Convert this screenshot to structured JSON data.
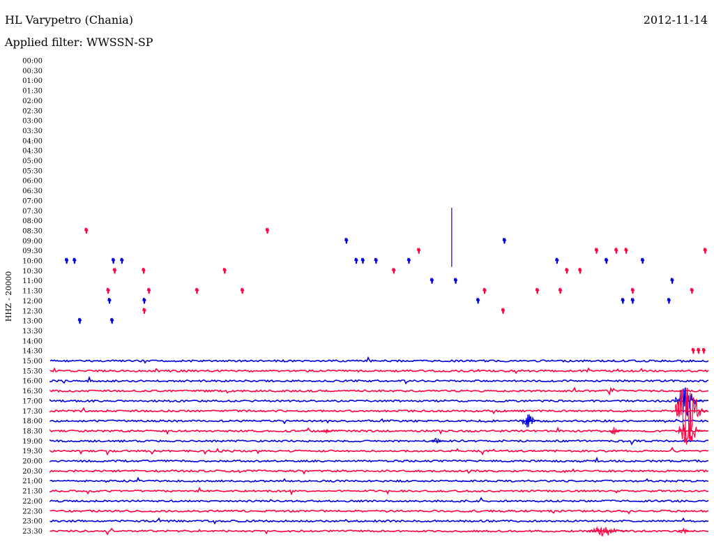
{
  "header": {
    "station": "HL Varypetro (Chania)",
    "date": "2012-11-14",
    "filter": "Applied filter: WWSSN-SP"
  },
  "chart_data": {
    "type": "line",
    "ylabel": "HHZ - 20000",
    "tick_labels": [
      "00:00",
      "00:30",
      "01:00",
      "01:30",
      "02:00",
      "02:30",
      "03:00",
      "03:30",
      "04:00",
      "04:30",
      "05:00",
      "05:30",
      "06:00",
      "06:30",
      "07:00",
      "07:30",
      "08:00",
      "08:30",
      "09:00",
      "09:30",
      "10:00",
      "10:30",
      "11:00",
      "11:30",
      "12:00",
      "12:30",
      "13:00",
      "13:30",
      "14:00",
      "14:30",
      "15:00",
      "15:30",
      "16:00",
      "16:30",
      "17:00",
      "17:30",
      "18:00",
      "18:30",
      "19:00",
      "19:30",
      "20:00",
      "20:30",
      "21:00",
      "21:30",
      "22:00",
      "22:30",
      "23:00",
      "23:30"
    ],
    "first_full_trace_row": 30,
    "row_colors": [
      "#0000dd",
      "#ff0040"
    ],
    "scattered_events": [
      {
        "row": 17,
        "x": 0.055
      },
      {
        "row": 17,
        "x": 0.33
      },
      {
        "row": 18,
        "x": 0.45
      },
      {
        "row": 18,
        "x": 0.69
      },
      {
        "row": 19,
        "x": 0.56
      },
      {
        "row": 19,
        "x": 0.83
      },
      {
        "row": 19,
        "x": 0.86
      },
      {
        "row": 19,
        "x": 0.875
      },
      {
        "row": 19,
        "x": 0.995
      },
      {
        "row": 20,
        "x": 0.025
      },
      {
        "row": 20,
        "x": 0.037
      },
      {
        "row": 20,
        "x": 0.096
      },
      {
        "row": 20,
        "x": 0.109
      },
      {
        "row": 20,
        "x": 0.465
      },
      {
        "row": 20,
        "x": 0.475
      },
      {
        "row": 20,
        "x": 0.495
      },
      {
        "row": 20,
        "x": 0.545
      },
      {
        "row": 20,
        "x": 0.77
      },
      {
        "row": 20,
        "x": 0.845
      },
      {
        "row": 20,
        "x": 0.9
      },
      {
        "row": 21,
        "x": 0.098
      },
      {
        "row": 21,
        "x": 0.142
      },
      {
        "row": 21,
        "x": 0.265
      },
      {
        "row": 21,
        "x": 0.522
      },
      {
        "row": 21,
        "x": 0.785
      },
      {
        "row": 21,
        "x": 0.805
      },
      {
        "row": 22,
        "x": 0.58
      },
      {
        "row": 22,
        "x": 0.616
      },
      {
        "row": 22,
        "x": 0.945
      },
      {
        "row": 23,
        "x": 0.088
      },
      {
        "row": 23,
        "x": 0.15
      },
      {
        "row": 23,
        "x": 0.223
      },
      {
        "row": 23,
        "x": 0.292
      },
      {
        "row": 23,
        "x": 0.66
      },
      {
        "row": 23,
        "x": 0.74
      },
      {
        "row": 23,
        "x": 0.775
      },
      {
        "row": 23,
        "x": 0.885
      },
      {
        "row": 23,
        "x": 0.975
      },
      {
        "row": 24,
        "x": 0.09
      },
      {
        "row": 24,
        "x": 0.143
      },
      {
        "row": 24,
        "x": 0.65
      },
      {
        "row": 24,
        "x": 0.87
      },
      {
        "row": 24,
        "x": 0.885
      },
      {
        "row": 24,
        "x": 0.94
      },
      {
        "row": 25,
        "x": 0.143
      },
      {
        "row": 25,
        "x": 0.688
      },
      {
        "row": 26,
        "x": 0.045
      },
      {
        "row": 26,
        "x": 0.094
      },
      {
        "row": 29,
        "x": 0.977
      },
      {
        "row": 29,
        "x": 0.985
      },
      {
        "row": 29,
        "x": 0.993
      }
    ],
    "big_spike": {
      "row": 16,
      "x": 0.61,
      "up_rows": 1.3,
      "down_rows": 4.6
    },
    "bursts": [
      {
        "row": 34,
        "x": 0.97,
        "amp_rows": 1.8,
        "width": 0.04
      },
      {
        "row": 35,
        "x": 0.975,
        "amp_rows": 3.2,
        "width": 0.05
      },
      {
        "row": 36,
        "x": 0.73,
        "amp_rows": 0.7,
        "width": 0.03
      },
      {
        "row": 37,
        "x": 0.975,
        "amp_rows": 1.5,
        "width": 0.04
      },
      {
        "row": 37,
        "x": 0.86,
        "amp_rows": 0.4,
        "width": 0.02
      },
      {
        "row": 37,
        "x": 0.42,
        "amp_rows": 0.3,
        "width": 0.02
      },
      {
        "row": 38,
        "x": 0.59,
        "amp_rows": 0.3,
        "width": 0.025
      },
      {
        "row": 47,
        "x": 0.85,
        "amp_rows": 0.5,
        "width": 0.06
      },
      {
        "row": 47,
        "x": 0.965,
        "amp_rows": 0.3,
        "width": 0.02
      }
    ]
  }
}
